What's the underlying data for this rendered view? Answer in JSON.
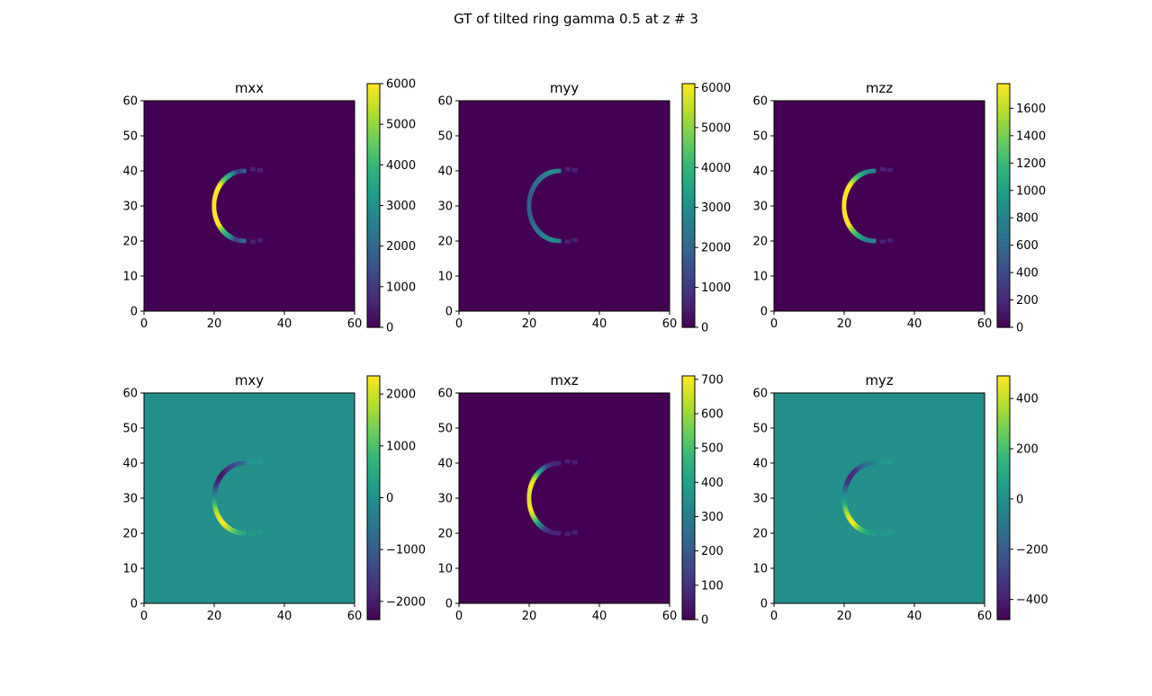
{
  "figure_title": "GT of tilted ring gamma 0.5 at z # 3",
  "colormap": "viridis",
  "chart_data": [
    {
      "type": "heatmap",
      "title": "mxx",
      "xlim": [
        0,
        60
      ],
      "ylim": [
        0,
        60
      ],
      "xticks": [
        "0",
        "20",
        "40",
        "60"
      ],
      "yticks": [
        "0",
        "10",
        "20",
        "30",
        "40",
        "50",
        "60"
      ],
      "clim": [
        0,
        6000
      ],
      "cticks": [
        {
          "v": 0,
          "label": "0"
        },
        {
          "v": 1000,
          "label": "1000"
        },
        {
          "v": 2000,
          "label": "2000"
        },
        {
          "v": 3000,
          "label": "3000"
        },
        {
          "v": 4000,
          "label": "4000"
        },
        {
          "v": 5000,
          "label": "5000"
        },
        {
          "v": 6000,
          "label": "6000"
        }
      ],
      "arc": [
        [
          0.35,
          0.15,
          0.55,
          0.7,
          1.0,
          1.0,
          1.0,
          1.0,
          1.0,
          1.0,
          0.7,
          0.55,
          0.15,
          0.35
        ]
      ],
      "background": 0.0
    },
    {
      "type": "heatmap",
      "title": "myy",
      "xlim": [
        0,
        60
      ],
      "ylim": [
        0,
        60
      ],
      "xticks": [
        "0",
        "20",
        "40",
        "60"
      ],
      "yticks": [
        "0",
        "10",
        "20",
        "30",
        "40",
        "50",
        "60"
      ],
      "clim": [
        0,
        6100
      ],
      "cticks": [
        {
          "v": 0,
          "label": "0"
        },
        {
          "v": 1000,
          "label": "1000"
        },
        {
          "v": 2000,
          "label": "2000"
        },
        {
          "v": 3000,
          "label": "3000"
        },
        {
          "v": 4000,
          "label": "4000"
        },
        {
          "v": 5000,
          "label": "5000"
        },
        {
          "v": 6000,
          "label": "6000"
        }
      ],
      "arc": [
        [
          0.45,
          0.5,
          0.45,
          0.4,
          0.35,
          0.3,
          0.3,
          0.3,
          0.3,
          0.35,
          0.4,
          0.45,
          0.5,
          0.45
        ]
      ],
      "background": 0.0
    },
    {
      "type": "heatmap",
      "title": "mzz",
      "xlim": [
        0,
        60
      ],
      "ylim": [
        0,
        60
      ],
      "xticks": [
        "0",
        "20",
        "40",
        "60"
      ],
      "yticks": [
        "0",
        "10",
        "20",
        "30",
        "40",
        "50",
        "60"
      ],
      "clim": [
        0,
        1780
      ],
      "cticks": [
        {
          "v": 0,
          "label": "0"
        },
        {
          "v": 200,
          "label": "200"
        },
        {
          "v": 400,
          "label": "400"
        },
        {
          "v": 600,
          "label": "600"
        },
        {
          "v": 800,
          "label": "800"
        },
        {
          "v": 1000,
          "label": "1000"
        },
        {
          "v": 1200,
          "label": "1200"
        },
        {
          "v": 1400,
          "label": "1400"
        },
        {
          "v": 1600,
          "label": "1600"
        }
      ],
      "arc": [
        [
          0.45,
          0.45,
          0.6,
          0.75,
          1.0,
          1.0,
          1.0,
          1.0,
          1.0,
          1.0,
          0.75,
          0.6,
          0.45,
          0.45
        ]
      ],
      "background": 0.0
    },
    {
      "type": "heatmap",
      "title": "mxy",
      "xlim": [
        0,
        60
      ],
      "ylim": [
        0,
        60
      ],
      "xticks": [
        "0",
        "20",
        "40",
        "60"
      ],
      "yticks": [
        "0",
        "10",
        "20",
        "30",
        "40",
        "50",
        "60"
      ],
      "clim": [
        -2350,
        2350
      ],
      "cticks": [
        {
          "v": -2000,
          "label": "−2000"
        },
        {
          "v": -1000,
          "label": "−1000"
        },
        {
          "v": 0,
          "label": "0"
        },
        {
          "v": 1000,
          "label": "1000"
        },
        {
          "v": 2000,
          "label": "2000"
        }
      ],
      "arc": [
        [
          0.4,
          0.3,
          0.2,
          0.1,
          0.05,
          0.15,
          0.4,
          0.6,
          0.85,
          0.95,
          1.0,
          0.85,
          0.7,
          0.6
        ]
      ],
      "background": 0.5
    },
    {
      "type": "heatmap",
      "title": "mxz",
      "xlim": [
        0,
        60
      ],
      "ylim": [
        0,
        60
      ],
      "xticks": [
        "0",
        "20",
        "40",
        "60"
      ],
      "yticks": [
        "0",
        "10",
        "20",
        "30",
        "40",
        "50",
        "60"
      ],
      "clim": [
        0,
        710
      ],
      "cticks": [
        {
          "v": 0,
          "label": "0"
        },
        {
          "v": 100,
          "label": "100"
        },
        {
          "v": 200,
          "label": "200"
        },
        {
          "v": 300,
          "label": "300"
        },
        {
          "v": 400,
          "label": "400"
        },
        {
          "v": 500,
          "label": "500"
        },
        {
          "v": 600,
          "label": "600"
        },
        {
          "v": 700,
          "label": "700"
        }
      ],
      "arc": [
        [
          0.1,
          0.1,
          0.2,
          0.55,
          0.85,
          1.0,
          0.95,
          0.95,
          1.0,
          0.85,
          0.55,
          0.2,
          0.1,
          0.1
        ]
      ],
      "background": 0.0
    },
    {
      "type": "heatmap",
      "title": "myz",
      "xlim": [
        0,
        60
      ],
      "ylim": [
        0,
        60
      ],
      "xticks": [
        "0",
        "20",
        "40",
        "60"
      ],
      "yticks": [
        "0",
        "10",
        "20",
        "30",
        "40",
        "50",
        "60"
      ],
      "clim": [
        -480,
        490
      ],
      "cticks": [
        {
          "v": -400,
          "label": "−400"
        },
        {
          "v": -200,
          "label": "−200"
        },
        {
          "v": 0,
          "label": "0"
        },
        {
          "v": 200,
          "label": "200"
        },
        {
          "v": 400,
          "label": "400"
        }
      ],
      "arc": [
        [
          0.45,
          0.4,
          0.3,
          0.15,
          0.1,
          0.2,
          0.45,
          0.55,
          0.8,
          0.95,
          1.0,
          0.75,
          0.6,
          0.55
        ]
      ],
      "background": 0.5
    }
  ]
}
